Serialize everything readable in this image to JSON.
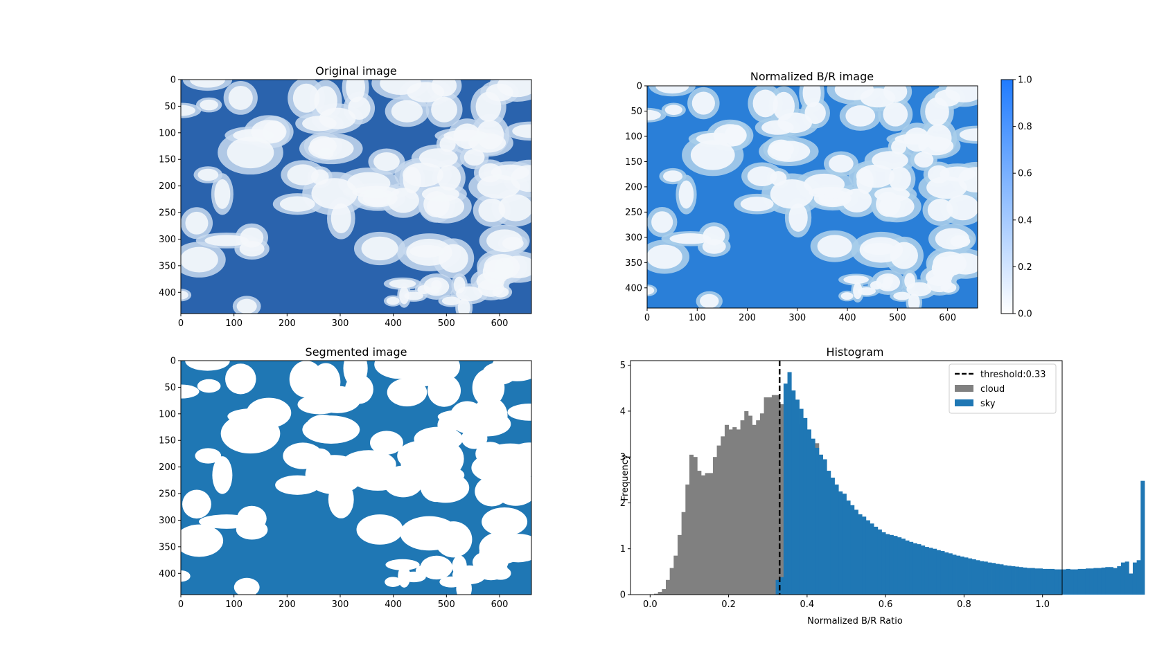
{
  "chart_data": [
    {
      "type": "image",
      "title": "Original image",
      "xlim": [
        0,
        660
      ],
      "ylim": [
        440,
        0
      ],
      "xticks": [
        0,
        100,
        200,
        300,
        400,
        500,
        600
      ],
      "yticks": [
        0,
        50,
        100,
        150,
        200,
        250,
        300,
        350,
        400
      ],
      "colors": {
        "sky": "#1e5ba8",
        "cloud": "#eef3f8"
      }
    },
    {
      "type": "heatmap",
      "title": "Normalized B/R image",
      "xlim": [
        0,
        660
      ],
      "ylim": [
        440,
        0
      ],
      "xticks": [
        0,
        100,
        200,
        300,
        400,
        500,
        600
      ],
      "yticks": [
        0,
        50,
        100,
        150,
        200,
        250,
        300,
        350,
        400
      ],
      "colorbar": {
        "range": [
          0.0,
          1.0
        ],
        "ticks": [
          "0.0",
          "0.2",
          "0.4",
          "0.6",
          "0.8",
          "1.0"
        ],
        "color_low": "#ffffff",
        "color_high": "#1f7bff"
      }
    },
    {
      "type": "image",
      "title": "Segmented image",
      "xlim": [
        0,
        660
      ],
      "ylim": [
        440,
        0
      ],
      "xticks": [
        0,
        100,
        200,
        300,
        400,
        500,
        600
      ],
      "yticks": [
        0,
        50,
        100,
        150,
        200,
        250,
        300,
        350,
        400
      ],
      "colors": {
        "sky": "#1f77b4",
        "cloud": "#ffffff"
      }
    },
    {
      "type": "bar",
      "title": "Histogram",
      "xlabel": "Normalized B/R Ratio",
      "ylabel": "Frequency",
      "xlim": [
        -0.05,
        1.05
      ],
      "ylim": [
        0,
        5.1
      ],
      "xticks": [
        "0.0",
        "0.2",
        "0.4",
        "0.6",
        "0.8",
        "1.0"
      ],
      "yticks": [
        "0",
        "1",
        "2",
        "3",
        "4",
        "5"
      ],
      "threshold": 0.33,
      "legend_position": "top-right",
      "legend": {
        "threshold": "threshold:0.33",
        "cloud": "cloud",
        "sky": "sky"
      },
      "bin_width": 0.01,
      "x_start": 0.0,
      "series": [
        {
          "name": "cloud",
          "color": "#808080",
          "values": [
            0.0,
            0.02,
            0.06,
            0.12,
            0.32,
            0.58,
            0.85,
            1.3,
            1.8,
            2.4,
            3.05,
            3.0,
            2.7,
            2.6,
            2.65,
            2.65,
            3.0,
            3.25,
            3.45,
            3.7,
            3.6,
            3.65,
            3.6,
            3.8,
            4.0,
            3.9,
            3.7,
            3.8,
            3.95,
            4.3,
            4.3,
            4.35,
            4.35,
            4.15,
            3.95,
            4.25,
            4.05,
            3.7,
            3.7,
            3.5,
            3.4,
            3.35,
            3.3,
            3.05,
            2.95,
            0.0,
            0.0
          ]
        },
        {
          "name": "sky",
          "color": "#1f77b4",
          "x_start": 0.32,
          "values": [
            0.32,
            0.38,
            4.6,
            4.85,
            4.45,
            4.25,
            4.05,
            3.85,
            3.6,
            3.4,
            3.2,
            3.05,
            2.95,
            2.7,
            2.55,
            2.4,
            2.25,
            2.2,
            2.05,
            1.95,
            1.85,
            1.75,
            1.7,
            1.62,
            1.55,
            1.48,
            1.42,
            1.36,
            1.32,
            1.3,
            1.28,
            1.25,
            1.22,
            1.18,
            1.15,
            1.12,
            1.1,
            1.07,
            1.04,
            1.02,
            1.0,
            0.97,
            0.95,
            0.92,
            0.9,
            0.87,
            0.85,
            0.83,
            0.81,
            0.79,
            0.77,
            0.75,
            0.73,
            0.72,
            0.7,
            0.69,
            0.67,
            0.66,
            0.64,
            0.63,
            0.62,
            0.61,
            0.6,
            0.59,
            0.58,
            0.58,
            0.57,
            0.57,
            0.56,
            0.56,
            0.56,
            0.55,
            0.55,
            0.55,
            0.56,
            0.55,
            0.55,
            0.56,
            0.56,
            0.57,
            0.57,
            0.58,
            0.58,
            0.59,
            0.6,
            0.6,
            0.58,
            0.62,
            0.7,
            0.72,
            0.46,
            0.7,
            0.75,
            2.48,
            0.0
          ]
        }
      ]
    }
  ]
}
